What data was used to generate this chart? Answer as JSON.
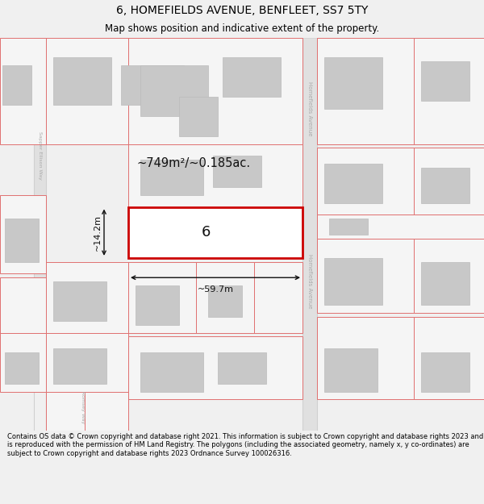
{
  "title_line1": "6, HOMEFIELDS AVENUE, BENFLEET, SS7 5TY",
  "title_line2": "Map shows position and indicative extent of the property.",
  "footer_text": "Contains OS data © Crown copyright and database right 2021. This information is subject to Crown copyright and database rights 2023 and is reproduced with the permission of HM Land Registry. The polygons (including the associated geometry, namely x, y co-ordinates) are subject to Crown copyright and database rights 2023 Ordnance Survey 100026316.",
  "bg_color": "#f0f0f0",
  "map_bg": "#e8e8e8",
  "plot_fill": "#f5f5f5",
  "plot_edge": "#e07070",
  "building_fill": "#c8c8c8",
  "building_edge": "#bbbbbb",
  "highlight_color": "#cc0000",
  "highlight_fill": "#ffffff",
  "road_fill": "#e0e0e0",
  "road_line": "#d0d0d0",
  "street_label_color": "#aaaaaa",
  "dim_color": "#111111",
  "area_label": "~749m²/~0.185ac.",
  "width_label": "~59.7m",
  "height_label": "~14.2m",
  "number_label": "6",
  "title_fontsize": 10,
  "subtitle_fontsize": 8.5,
  "footer_fontsize": 6.0
}
